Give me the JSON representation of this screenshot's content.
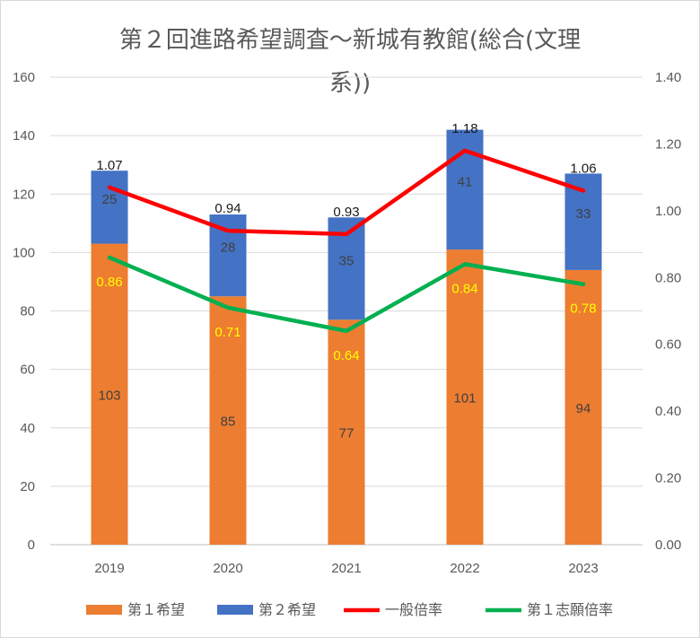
{
  "chart_data": {
    "type": "bar",
    "title_lines": [
      "第２回進路希望調査～新城有教館(総合(文理",
      "系))"
    ],
    "categories": [
      "2019",
      "2020",
      "2021",
      "2022",
      "2023"
    ],
    "series": [
      {
        "name": "第１希望",
        "kind": "bar",
        "axis": "left",
        "color": "#ED7D31",
        "values": [
          103,
          85,
          77,
          101,
          94
        ]
      },
      {
        "name": "第２希望",
        "kind": "bar",
        "axis": "left",
        "color": "#4472C4",
        "values": [
          25,
          28,
          35,
          41,
          33
        ]
      },
      {
        "name": "一般倍率",
        "kind": "line",
        "axis": "right",
        "color": "#FF0000",
        "values": [
          1.07,
          0.94,
          0.93,
          1.18,
          1.06
        ],
        "labels": [
          "1.07",
          "0.94",
          "0.93",
          "1.18",
          "1.06"
        ]
      },
      {
        "name": "第１志願倍率",
        "kind": "line",
        "axis": "right",
        "color": "#00B050",
        "values": [
          0.86,
          0.71,
          0.64,
          0.84,
          0.78
        ],
        "labels": [
          "0.86",
          "0.71",
          "0.64",
          "0.84",
          "0.78"
        ]
      }
    ],
    "y_left": {
      "min": 0,
      "max": 160,
      "ticks": [
        "0",
        "20",
        "40",
        "60",
        "80",
        "100",
        "120",
        "140",
        "160"
      ]
    },
    "y_right": {
      "min": 0,
      "max": 1.4,
      "ticks": [
        "0.00",
        "0.20",
        "0.40",
        "0.60",
        "0.80",
        "1.00",
        "1.20",
        "1.40"
      ]
    },
    "grid": true,
    "legend_position": "bottom"
  }
}
